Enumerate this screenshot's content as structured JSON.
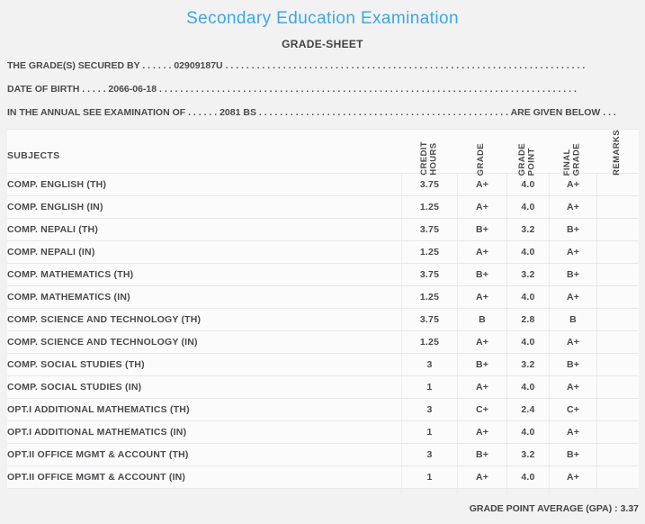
{
  "page": {
    "title": "Secondary Education Examination",
    "subtitle": "GRADE-SHEET"
  },
  "student_info": {
    "secured_by": {
      "label": "THE GRADE(S) SECURED BY",
      "dots_before": " . . . . . . ",
      "value": "02909187U",
      "dots_after": " . . . . . . . . . . . . . . . . . . . . . . . . . . . . . . . . . . . . . . . . . . . . . . . . . . . . . . . . . . . . . . . . . . . . . ."
    },
    "date_of_birth": {
      "label": "DATE OF BIRTH",
      "dots_before": " . . . . . ",
      "value": "2066-06-18",
      "dots_after": " . . . . . . . . . . . . . . . . . . . . . . . . . . . . . . . . . . . . . . . . . . . . . . . . . . . . . . . . . . . . . . . . . . . . . . . . . . . . . . . ."
    },
    "examination": {
      "label": "IN THE ANNUAL SEE EXAMINATION OF",
      "dots_before": " . . . . . . ",
      "value": "2081 BS",
      "dots_middle": " . . . . . . . . . . . . . . . . . . . . . . . . . . . . . . . . . . . . . . . . . . . . . . . . ",
      "suffix": "ARE GIVEN BELOW",
      "dots_after": " . . ."
    }
  },
  "table": {
    "headers": {
      "subjects": "SUBJECTS",
      "credit_hours": "CREDIT\nHOURS",
      "grade": "GRADE",
      "grade_point": "GRADE\nPOINT",
      "final_grade": "FINAL\nGRADE",
      "remarks": "REMARKS"
    },
    "rows": [
      {
        "subject": "COMP. ENGLISH (TH)",
        "credit_hours": "3.75",
        "grade": "A+",
        "grade_point": "4.0",
        "final_grade": "A+",
        "remarks": ""
      },
      {
        "subject": "COMP. ENGLISH (IN)",
        "credit_hours": "1.25",
        "grade": "A+",
        "grade_point": "4.0",
        "final_grade": "A+",
        "remarks": ""
      },
      {
        "subject": "COMP. NEPALI (TH)",
        "credit_hours": "3.75",
        "grade": "B+",
        "grade_point": "3.2",
        "final_grade": "B+",
        "remarks": ""
      },
      {
        "subject": "COMP. NEPALI (IN)",
        "credit_hours": "1.25",
        "grade": "A+",
        "grade_point": "4.0",
        "final_grade": "A+",
        "remarks": ""
      },
      {
        "subject": "COMP. MATHEMATICS (TH)",
        "credit_hours": "3.75",
        "grade": "B+",
        "grade_point": "3.2",
        "final_grade": "B+",
        "remarks": ""
      },
      {
        "subject": "COMP. MATHEMATICS (IN)",
        "credit_hours": "1.25",
        "grade": "A+",
        "grade_point": "4.0",
        "final_grade": "A+",
        "remarks": ""
      },
      {
        "subject": "COMP. SCIENCE AND TECHNOLOGY (TH)",
        "credit_hours": "3.75",
        "grade": "B",
        "grade_point": "2.8",
        "final_grade": "B",
        "remarks": ""
      },
      {
        "subject": "COMP. SCIENCE AND TECHNOLOGY (IN)",
        "credit_hours": "1.25",
        "grade": "A+",
        "grade_point": "4.0",
        "final_grade": "A+",
        "remarks": ""
      },
      {
        "subject": "COMP. SOCIAL STUDIES (TH)",
        "credit_hours": "3",
        "grade": "B+",
        "grade_point": "3.2",
        "final_grade": "B+",
        "remarks": ""
      },
      {
        "subject": "COMP. SOCIAL STUDIES (IN)",
        "credit_hours": "1",
        "grade": "A+",
        "grade_point": "4.0",
        "final_grade": "A+",
        "remarks": ""
      },
      {
        "subject": "OPT.I ADDITIONAL MATHEMATICS (TH)",
        "credit_hours": "3",
        "grade": "C+",
        "grade_point": "2.4",
        "final_grade": "C+",
        "remarks": ""
      },
      {
        "subject": "OPT.I ADDITIONAL MATHEMATICS (IN)",
        "credit_hours": "1",
        "grade": "A+",
        "grade_point": "4.0",
        "final_grade": "A+",
        "remarks": ""
      },
      {
        "subject": "OPT.II OFFICE MGMT & ACCOUNT (TH)",
        "credit_hours": "3",
        "grade": "B+",
        "grade_point": "3.2",
        "final_grade": "B+",
        "remarks": ""
      },
      {
        "subject": "OPT.II OFFICE MGMT & ACCOUNT (IN)",
        "credit_hours": "1",
        "grade": "A+",
        "grade_point": "4.0",
        "final_grade": "A+",
        "remarks": ""
      }
    ],
    "footer": {
      "gpa_label": "GRADE POINT AVERAGE (GPA) :",
      "gpa_value": "3.37"
    }
  },
  "colors": {
    "title_blue": "#3aa9e4",
    "text_gray": "#4a4a4c",
    "page_background": "#f2f2f3",
    "row_background": "#fbfbfc"
  }
}
